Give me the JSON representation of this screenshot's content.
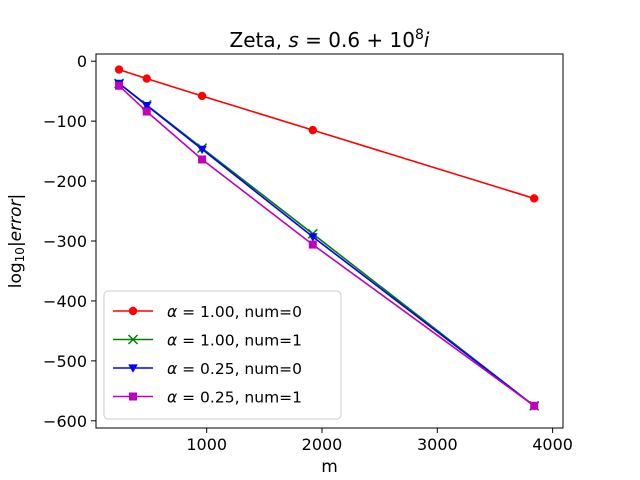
{
  "chart_data": {
    "type": "line",
    "title": {
      "prefix": "Zeta, ",
      "var": "s",
      "eq": " = 0.6 + 10",
      "sup": "8",
      "suffix": "i"
    },
    "xlabel": "m",
    "ylabel": {
      "prefix": "log",
      "sub": "10",
      "body": "|error|"
    },
    "xlim": [
      40,
      4090
    ],
    "ylim": [
      -612,
      12
    ],
    "xticks": [
      1000,
      2000,
      3000,
      4000
    ],
    "xtick_labels": [
      "1000",
      "2000",
      "3000",
      "4000"
    ],
    "yticks": [
      0,
      -100,
      -200,
      -300,
      -400,
      -500,
      -600
    ],
    "ytick_labels": [
      "0",
      "−100",
      "−200",
      "−300",
      "−400",
      "−500",
      "−600"
    ],
    "grid": false,
    "legend_position": "lower-left",
    "x": [
      240,
      480,
      960,
      1920,
      3840
    ],
    "series": [
      {
        "alpha": "1.00",
        "num": "0",
        "color": "#ff0000",
        "marker": "circle",
        "values": [
          -14,
          -29,
          -58,
          -115,
          -229
        ]
      },
      {
        "alpha": "1.00",
        "num": "1",
        "color": "#008000",
        "marker": "x",
        "values": [
          -37,
          -73,
          -145,
          -288,
          -575
        ]
      },
      {
        "alpha": "0.25",
        "num": "0",
        "color": "#0000ff",
        "marker": "triangle",
        "values": [
          -37,
          -74,
          -147,
          -293,
          -575
        ]
      },
      {
        "alpha": "0.25",
        "num": "1",
        "color": "#bf00bf",
        "marker": "square",
        "values": [
          -41,
          -84,
          -164,
          -306,
          -575
        ]
      }
    ]
  }
}
